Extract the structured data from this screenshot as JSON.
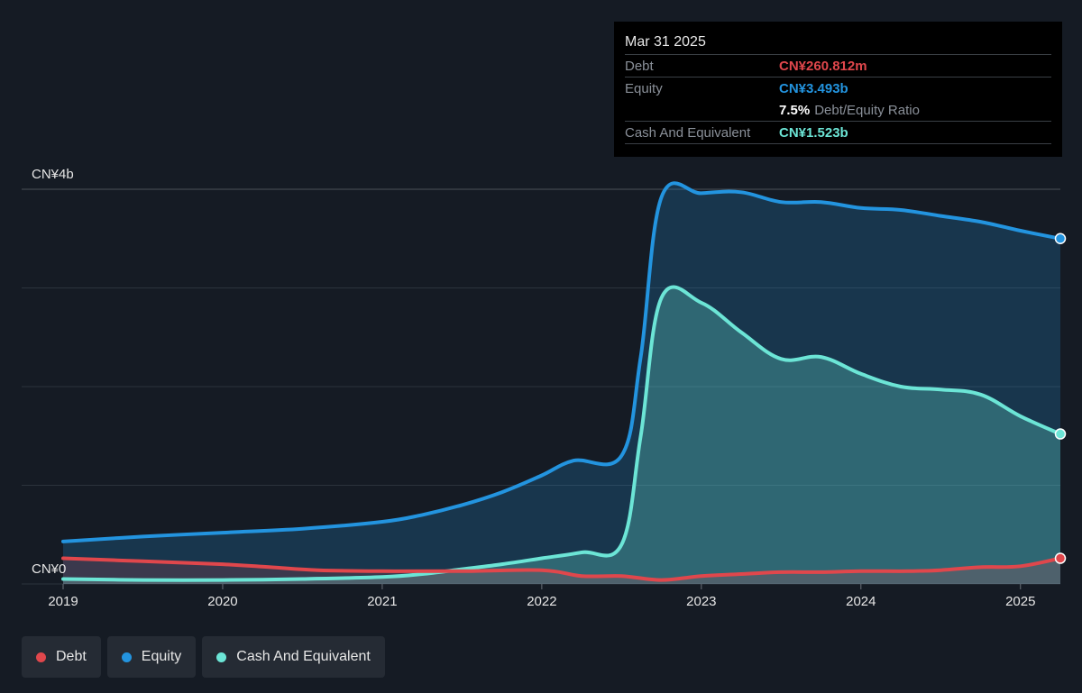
{
  "tooltip": {
    "date": "Mar 31 2025",
    "debt_label": "Debt",
    "debt_value": "CN¥260.812m",
    "equity_label": "Equity",
    "equity_value": "CN¥3.493b",
    "ratio_value": "7.5%",
    "ratio_label": "Debt/Equity Ratio",
    "cash_label": "Cash And Equivalent",
    "cash_value": "CN¥1.523b"
  },
  "legend": [
    {
      "label": "Debt",
      "color": "#e0474c"
    },
    {
      "label": "Equity",
      "color": "#2394df"
    },
    {
      "label": "Cash And Equivalent",
      "color": "#6ce5d6"
    }
  ],
  "chart_data": {
    "type": "area",
    "y_tick_labels": [
      "CN¥4b",
      "CN¥0"
    ],
    "ylim": [
      0,
      4
    ],
    "unit": "billion CNY",
    "x_tick_labels": [
      "2019",
      "2020",
      "2021",
      "2022",
      "2023",
      "2024",
      "2025"
    ],
    "xlim": [
      2019,
      2025.25
    ],
    "gridlines": [
      0,
      1,
      2,
      3,
      4
    ],
    "series": [
      {
        "name": "Debt",
        "color": "#e0474c",
        "points": [
          [
            2019.0,
            0.26
          ],
          [
            2019.5,
            0.23
          ],
          [
            2020.0,
            0.2
          ],
          [
            2020.3,
            0.17
          ],
          [
            2020.6,
            0.14
          ],
          [
            2021.0,
            0.13
          ],
          [
            2021.5,
            0.13
          ],
          [
            2022.0,
            0.14
          ],
          [
            2022.25,
            0.08
          ],
          [
            2022.5,
            0.08
          ],
          [
            2022.75,
            0.04
          ],
          [
            2023.0,
            0.08
          ],
          [
            2023.25,
            0.1
          ],
          [
            2023.5,
            0.12
          ],
          [
            2023.75,
            0.12
          ],
          [
            2024.0,
            0.13
          ],
          [
            2024.3,
            0.13
          ],
          [
            2024.5,
            0.14
          ],
          [
            2024.75,
            0.17
          ],
          [
            2025.0,
            0.18
          ],
          [
            2025.25,
            0.26
          ]
        ]
      },
      {
        "name": "Equity",
        "color": "#2394df",
        "points": [
          [
            2019.0,
            0.43
          ],
          [
            2019.5,
            0.48
          ],
          [
            2020.0,
            0.52
          ],
          [
            2020.5,
            0.56
          ],
          [
            2021.0,
            0.63
          ],
          [
            2021.25,
            0.7
          ],
          [
            2021.5,
            0.8
          ],
          [
            2021.75,
            0.93
          ],
          [
            2022.0,
            1.1
          ],
          [
            2022.2,
            1.25
          ],
          [
            2022.5,
            1.3
          ],
          [
            2022.62,
            2.3
          ],
          [
            2022.75,
            3.92
          ],
          [
            2023.0,
            3.96
          ],
          [
            2023.25,
            3.97
          ],
          [
            2023.5,
            3.87
          ],
          [
            2023.75,
            3.87
          ],
          [
            2024.0,
            3.81
          ],
          [
            2024.25,
            3.79
          ],
          [
            2024.5,
            3.73
          ],
          [
            2024.75,
            3.67
          ],
          [
            2025.0,
            3.58
          ],
          [
            2025.25,
            3.5
          ]
        ]
      },
      {
        "name": "Cash And Equivalent",
        "color": "#6ce5d6",
        "points": [
          [
            2019.0,
            0.05
          ],
          [
            2019.5,
            0.04
          ],
          [
            2020.0,
            0.04
          ],
          [
            2020.5,
            0.05
          ],
          [
            2021.0,
            0.07
          ],
          [
            2021.25,
            0.1
          ],
          [
            2021.5,
            0.15
          ],
          [
            2021.75,
            0.2
          ],
          [
            2022.0,
            0.26
          ],
          [
            2022.25,
            0.32
          ],
          [
            2022.5,
            0.4
          ],
          [
            2022.62,
            1.5
          ],
          [
            2022.75,
            2.9
          ],
          [
            2023.0,
            2.85
          ],
          [
            2023.25,
            2.55
          ],
          [
            2023.5,
            2.28
          ],
          [
            2023.75,
            2.3
          ],
          [
            2024.0,
            2.13
          ],
          [
            2024.25,
            2.0
          ],
          [
            2024.5,
            1.97
          ],
          [
            2024.75,
            1.92
          ],
          [
            2025.0,
            1.7
          ],
          [
            2025.25,
            1.52
          ]
        ]
      }
    ]
  }
}
